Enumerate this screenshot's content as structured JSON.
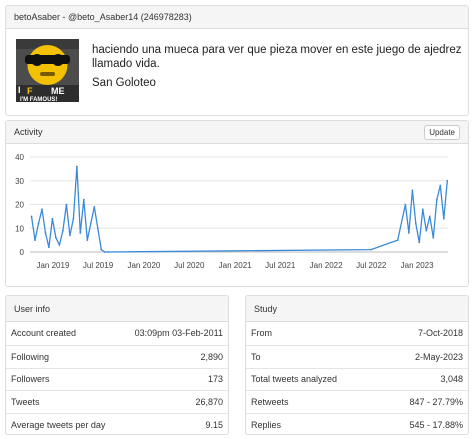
{
  "profile": {
    "header": "betoAsaber - @beto_Asaber14 (246978283)",
    "tweet_text": "haciendo una mueca para ver que pieza mover en este juego de ajedrez llamado vida.",
    "tweet_place": "San Goloteo",
    "avatar_text": "I'M FAMOUS!"
  },
  "activity": {
    "title": "Activity",
    "update_label": "Update"
  },
  "chart_data": {
    "type": "line",
    "color": "#3b8ad9",
    "ylim": [
      0,
      40
    ],
    "yticks": [
      "0",
      "10",
      "20",
      "30",
      "40"
    ],
    "xticks": [
      "Jan 2019",
      "Jul 2019",
      "Jan 2020",
      "Jul 2020",
      "Jan 2021",
      "Jul 2021",
      "Jan 2022",
      "Jul 2022",
      "Jan 2023"
    ],
    "x": [
      "2018-10-07",
      "2018-10-21",
      "2018-11-04",
      "2018-11-18",
      "2018-12-02",
      "2018-12-16",
      "2018-12-30",
      "2019-01-13",
      "2019-01-27",
      "2019-02-10",
      "2019-02-24",
      "2019-03-10",
      "2019-03-24",
      "2019-04-07",
      "2019-04-21",
      "2019-05-05",
      "2019-05-19",
      "2019-06-02",
      "2019-06-16",
      "2019-06-30",
      "2019-07-14",
      "2019-07-28",
      "2019-08-11",
      "2022-07-01",
      "2022-10-15",
      "2022-11-15",
      "2022-11-29",
      "2022-12-13",
      "2022-12-27",
      "2023-01-10",
      "2023-01-24",
      "2023-02-07",
      "2023-02-21",
      "2023-03-07",
      "2023-03-21",
      "2023-04-04",
      "2023-04-18",
      "2023-05-02"
    ],
    "y": [
      15,
      5,
      12,
      18,
      8,
      2,
      14,
      6,
      3,
      9,
      20,
      7,
      14,
      36,
      8,
      22,
      5,
      12,
      19,
      10,
      1,
      0,
      0,
      1,
      5,
      20,
      8,
      26,
      12,
      4,
      18,
      9,
      15,
      6,
      22,
      28,
      14,
      30
    ]
  },
  "user_info": {
    "title": "User info",
    "rows": [
      {
        "label": "Account created",
        "value": "03:09pm 03-Feb-2011"
      },
      {
        "label": "Following",
        "value": "2,890"
      },
      {
        "label": "Followers",
        "value": "173"
      },
      {
        "label": "Tweets",
        "value": "26,870"
      },
      {
        "label": "Average tweets per day",
        "value": "9.15"
      }
    ]
  },
  "study": {
    "title": "Study",
    "rows": [
      {
        "label": "From",
        "value": "7-Oct-2018"
      },
      {
        "label": "To",
        "value": "2-May-2023"
      },
      {
        "label": "Total tweets analyzed",
        "value": "3,048"
      },
      {
        "label": "Retweets",
        "value": "847 - 27.79%"
      },
      {
        "label": "Replies",
        "value": "545 - 17.88%"
      }
    ]
  }
}
